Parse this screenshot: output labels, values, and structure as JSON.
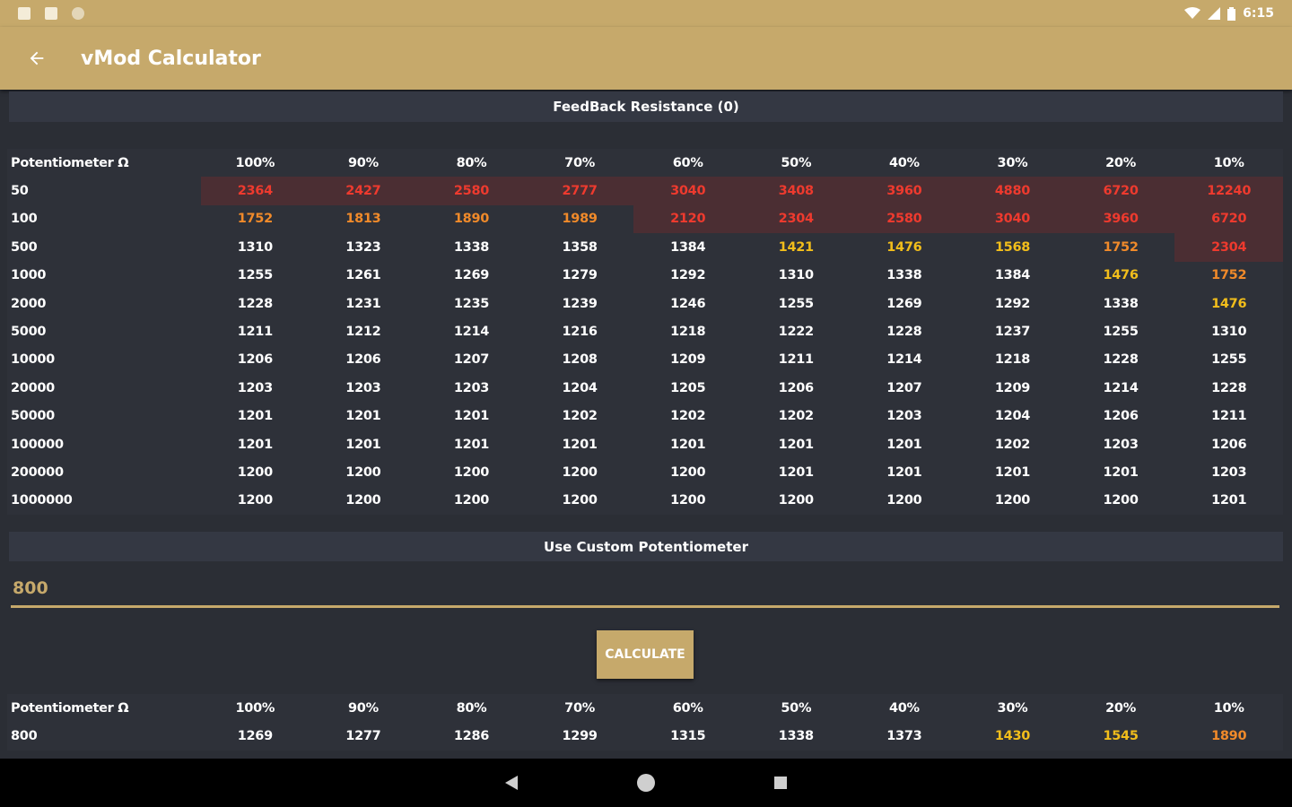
{
  "status_bar": {
    "time": "6:15",
    "icons": [
      "notification-icon",
      "sd-card-icon",
      "circle-icon",
      "wifi-icon",
      "signal-icon",
      "battery-icon"
    ]
  },
  "app_bar": {
    "title": "vMod Calculator",
    "back_icon": "arrow-back-icon"
  },
  "feedback_section": {
    "title": "FeedBack Resistance (0)"
  },
  "main_table": {
    "header": [
      "Potentiometer Ω",
      "100%",
      "90%",
      "80%",
      "70%",
      "60%",
      "50%",
      "40%",
      "30%",
      "20%",
      "10%"
    ],
    "rows": [
      {
        "label": "50",
        "values": [
          "2364",
          "2427",
          "2580",
          "2777",
          "3040",
          "3408",
          "3960",
          "4880",
          "6720",
          "12240"
        ],
        "colors": [
          "r",
          "r",
          "r",
          "r",
          "r",
          "r",
          "r",
          "r",
          "r",
          "r"
        ]
      },
      {
        "label": "100",
        "values": [
          "1752",
          "1813",
          "1890",
          "1989",
          "2120",
          "2304",
          "2580",
          "3040",
          "3960",
          "6720"
        ],
        "colors": [
          "o",
          "o",
          "o",
          "o",
          "r",
          "r",
          "r",
          "r",
          "r",
          "r"
        ]
      },
      {
        "label": "500",
        "values": [
          "1310",
          "1323",
          "1338",
          "1358",
          "1384",
          "1421",
          "1476",
          "1568",
          "1752",
          "2304"
        ],
        "colors": [
          "w",
          "w",
          "w",
          "w",
          "w",
          "y",
          "y",
          "y",
          "o",
          "r"
        ]
      },
      {
        "label": "1000",
        "values": [
          "1255",
          "1261",
          "1269",
          "1279",
          "1292",
          "1310",
          "1338",
          "1384",
          "1476",
          "1752"
        ],
        "colors": [
          "w",
          "w",
          "w",
          "w",
          "w",
          "w",
          "w",
          "w",
          "y",
          "o"
        ]
      },
      {
        "label": "2000",
        "values": [
          "1228",
          "1231",
          "1235",
          "1239",
          "1246",
          "1255",
          "1269",
          "1292",
          "1338",
          "1476"
        ],
        "colors": [
          "w",
          "w",
          "w",
          "w",
          "w",
          "w",
          "w",
          "w",
          "w",
          "y"
        ]
      },
      {
        "label": "5000",
        "values": [
          "1211",
          "1212",
          "1214",
          "1216",
          "1218",
          "1222",
          "1228",
          "1237",
          "1255",
          "1310"
        ],
        "colors": [
          "w",
          "w",
          "w",
          "w",
          "w",
          "w",
          "w",
          "w",
          "w",
          "w"
        ]
      },
      {
        "label": "10000",
        "values": [
          "1206",
          "1206",
          "1207",
          "1208",
          "1209",
          "1211",
          "1214",
          "1218",
          "1228",
          "1255"
        ],
        "colors": [
          "w",
          "w",
          "w",
          "w",
          "w",
          "w",
          "w",
          "w",
          "w",
          "w"
        ]
      },
      {
        "label": "20000",
        "values": [
          "1203",
          "1203",
          "1203",
          "1204",
          "1205",
          "1206",
          "1207",
          "1209",
          "1214",
          "1228"
        ],
        "colors": [
          "w",
          "w",
          "w",
          "w",
          "w",
          "w",
          "w",
          "w",
          "w",
          "w"
        ]
      },
      {
        "label": "50000",
        "values": [
          "1201",
          "1201",
          "1201",
          "1202",
          "1202",
          "1202",
          "1203",
          "1204",
          "1206",
          "1211"
        ],
        "colors": [
          "w",
          "w",
          "w",
          "w",
          "w",
          "w",
          "w",
          "w",
          "w",
          "w"
        ]
      },
      {
        "label": "100000",
        "values": [
          "1201",
          "1201",
          "1201",
          "1201",
          "1201",
          "1201",
          "1201",
          "1202",
          "1203",
          "1206"
        ],
        "colors": [
          "w",
          "w",
          "w",
          "w",
          "w",
          "w",
          "w",
          "w",
          "w",
          "w"
        ]
      },
      {
        "label": "200000",
        "values": [
          "1200",
          "1200",
          "1200",
          "1200",
          "1200",
          "1201",
          "1201",
          "1201",
          "1201",
          "1203"
        ],
        "colors": [
          "w",
          "w",
          "w",
          "w",
          "w",
          "w",
          "w",
          "w",
          "w",
          "w"
        ]
      },
      {
        "label": "1000000",
        "values": [
          "1200",
          "1200",
          "1200",
          "1200",
          "1200",
          "1200",
          "1200",
          "1200",
          "1200",
          "1201"
        ],
        "colors": [
          "w",
          "w",
          "w",
          "w",
          "w",
          "w",
          "w",
          "w",
          "w",
          "w"
        ]
      }
    ]
  },
  "custom_section": {
    "title": "Use Custom Potentiometer",
    "input_value": "800",
    "calculate_label": "CALCULATE"
  },
  "custom_table": {
    "header": [
      "Potentiometer Ω",
      "100%",
      "90%",
      "80%",
      "70%",
      "60%",
      "50%",
      "40%",
      "30%",
      "20%",
      "10%"
    ],
    "rows": [
      {
        "label": "800",
        "values": [
          "1269",
          "1277",
          "1286",
          "1299",
          "1315",
          "1338",
          "1373",
          "1430",
          "1545",
          "1890"
        ],
        "colors": [
          "w",
          "w",
          "w",
          "w",
          "w",
          "w",
          "w",
          "y",
          "y",
          "o"
        ]
      }
    ]
  },
  "colors": {
    "accent": "#c6a96b",
    "background": "#2b2e35",
    "red": "#ee3a2e",
    "orange": "#f08a2a",
    "yellow": "#f2be1b"
  },
  "nav_bar": {
    "icons": [
      "back-triangle-icon",
      "home-circle-icon",
      "recents-square-icon"
    ]
  }
}
